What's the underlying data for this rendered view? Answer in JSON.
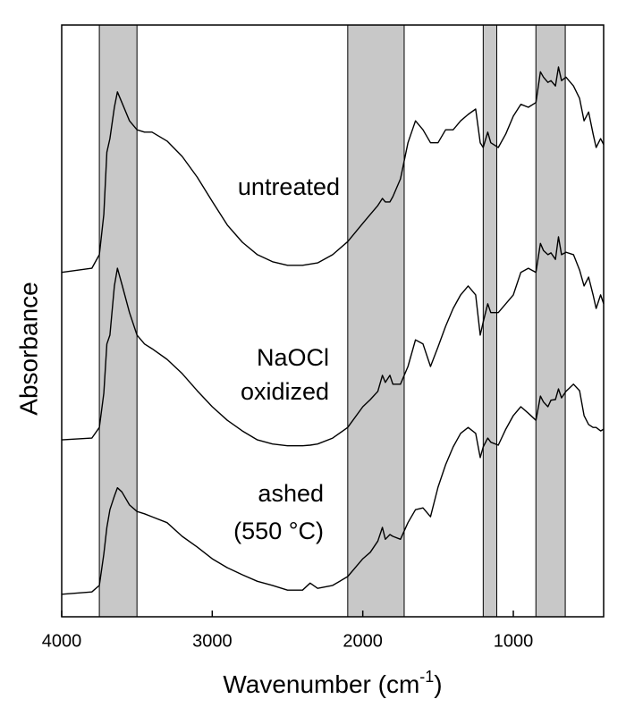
{
  "chart_data": {
    "type": "line",
    "ylabel": "Absorbance",
    "xlabel": [
      "Wavenumber (cm",
      "-1",
      ")"
    ],
    "annotations": [
      "untreated",
      "NaOCl",
      "oxidized",
      "ashed",
      "(550 °C)"
    ],
    "xlim": [
      4000,
      400
    ],
    "xticks": [
      4000,
      3000,
      2000,
      1000
    ],
    "ylim": [
      0,
      100
    ],
    "bands": [
      [
        3750,
        3500
      ],
      [
        2100,
        1725
      ],
      [
        1200,
        1110
      ],
      [
        850,
        655
      ]
    ],
    "band_color": "#c8c8c8",
    "x": [
      4000,
      3800,
      3750,
      3720,
      3700,
      3680,
      3650,
      3630,
      3600,
      3550,
      3500,
      3450,
      3400,
      3300,
      3200,
      3100,
      3000,
      2900,
      2800,
      2700,
      2600,
      2500,
      2400,
      2350,
      2300,
      2200,
      2100,
      2000,
      1950,
      1900,
      1870,
      1850,
      1820,
      1800,
      1750,
      1700,
      1650,
      1600,
      1550,
      1500,
      1450,
      1400,
      1350,
      1300,
      1250,
      1220,
      1200,
      1170,
      1150,
      1100,
      1050,
      1000,
      950,
      900,
      850,
      820,
      800,
      770,
      750,
      720,
      700,
      680,
      650,
      600,
      560,
      530,
      500,
      470,
      450,
      420,
      400
    ],
    "series": [
      {
        "color": "#000000",
        "values": [
          58.2,
          58.9,
          61.2,
          68,
          78.5,
          80.8,
          86.1,
          88.7,
          86.9,
          83.8,
          82.3,
          81.9,
          81.9,
          80.4,
          77.8,
          74.3,
          70.2,
          66.2,
          63.3,
          61.2,
          60.0,
          59.4,
          59.4,
          59.6,
          59.8,
          61.2,
          63.4,
          66.5,
          68,
          69.5,
          70.7,
          70.1,
          70.1,
          71.0,
          74.0,
          80.1,
          83.8,
          82.3,
          80.1,
          80.1,
          82.3,
          82.3,
          83.8,
          84.9,
          85.8,
          80.1,
          79.3,
          81.9,
          80.1,
          79.3,
          81.6,
          84.6,
          86.6,
          86.1,
          86.9,
          92.1,
          91.2,
          90.3,
          90.6,
          89.7,
          92.9,
          90.6,
          91.2,
          89.7,
          87.6,
          83.8,
          85.3,
          81.6,
          79.3,
          80.8,
          79.8
        ]
      },
      {
        "color": "#000000",
        "values": [
          29.9,
          30.2,
          32.0,
          37.8,
          46.1,
          47.6,
          55.9,
          58.9,
          56.2,
          51.4,
          47.6,
          46.1,
          45.3,
          43.5,
          41.1,
          38.2,
          35.5,
          33.2,
          31.4,
          29.9,
          29.2,
          28.9,
          28.9,
          29.0,
          29.2,
          30.2,
          32.0,
          35.5,
          36.7,
          38.1,
          40.8,
          39.6,
          40.8,
          39.3,
          39.3,
          42.3,
          46.8,
          46.1,
          42.3,
          45.6,
          49.1,
          52.1,
          54.4,
          55.9,
          54.4,
          47.6,
          49.8,
          52.9,
          51.4,
          51.4,
          52.9,
          54.4,
          58.2,
          58.9,
          58.2,
          63.1,
          61.9,
          61.2,
          61.5,
          60.4,
          64.2,
          61.2,
          61.6,
          61.2,
          58.6,
          55.9,
          57.4,
          54.4,
          52.1,
          54.4,
          52.9
        ]
      },
      {
        "color": "#000000",
        "values": [
          3.8,
          4.2,
          5.3,
          10.6,
          15.1,
          18.1,
          20.4,
          21.8,
          21.1,
          18.9,
          17.8,
          17.4,
          16.9,
          15.9,
          13.6,
          11.8,
          9.8,
          8.3,
          7.1,
          6.0,
          5.3,
          4.5,
          4.5,
          5.7,
          4.8,
          5.3,
          6.8,
          9.8,
          10.9,
          12.8,
          15.1,
          13.1,
          13.9,
          13.6,
          13.1,
          15.9,
          18.1,
          18.4,
          16.9,
          21.9,
          25.7,
          28.7,
          31.0,
          32.0,
          31.0,
          26.9,
          28.7,
          30.2,
          29.5,
          29.0,
          31.7,
          34.0,
          35.5,
          34.4,
          33.2,
          37.3,
          36.3,
          35.5,
          36.6,
          36.7,
          38.5,
          37.0,
          38.1,
          39.3,
          38.2,
          34.0,
          32.5,
          32.0,
          32.0,
          31.4,
          31.7
        ]
      }
    ]
  }
}
